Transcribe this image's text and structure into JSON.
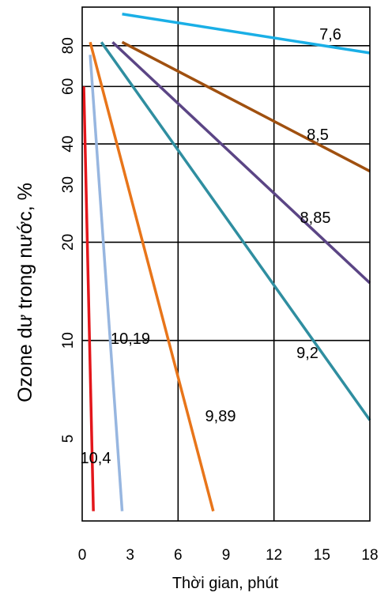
{
  "chart_data": {
    "type": "line",
    "xlabel": "Thời gian, phút",
    "ylabel": "Ozone dư trong nước, %",
    "yscale": "log",
    "xlim": [
      0,
      18
    ],
    "ylim": [
      2.8,
      105
    ],
    "grid": "on",
    "x_ticks": [
      "0",
      "3",
      "6",
      "9",
      "12",
      "15",
      "18"
    ],
    "y_ticks": [
      {
        "value": 5,
        "label": "5"
      },
      {
        "value": 10,
        "label": "10"
      },
      {
        "value": 20,
        "label": "20"
      },
      {
        "value": 30,
        "label": "30"
      },
      {
        "value": 40,
        "label": "40"
      },
      {
        "value": 60,
        "label": "60"
      },
      {
        "value": 80,
        "label": "80"
      }
    ],
    "x_gridlines": [
      6,
      12
    ],
    "y_gridlines": [
      10,
      20,
      40,
      60,
      80
    ],
    "series": [
      {
        "name": "7,6",
        "color": "#1AAFE6",
        "x": [
          2.5,
          18
        ],
        "y": [
          100,
          76
        ]
      },
      {
        "name": "8,5",
        "color": "#A0500F",
        "x": [
          2.5,
          18
        ],
        "y": [
          82,
          33
        ]
      },
      {
        "name": "8,85",
        "color": "#5B4585",
        "x": [
          1.9,
          18
        ],
        "y": [
          82,
          15
        ]
      },
      {
        "name": "9,2",
        "color": "#2F8EA0",
        "x": [
          1.2,
          18
        ],
        "y": [
          82,
          5.7
        ]
      },
      {
        "name": "9,89",
        "color": "#E8751A",
        "x": [
          0.5,
          8.2
        ],
        "y": [
          82,
          3.0
        ]
      },
      {
        "name": "10,19",
        "color": "#97B6E0",
        "x": [
          0.5,
          2.5
        ],
        "y": [
          75,
          3.0
        ]
      },
      {
        "name": "10,4",
        "color": "#E3161B",
        "x": [
          0.1,
          0.7
        ],
        "y": [
          60,
          3.0
        ]
      }
    ]
  }
}
